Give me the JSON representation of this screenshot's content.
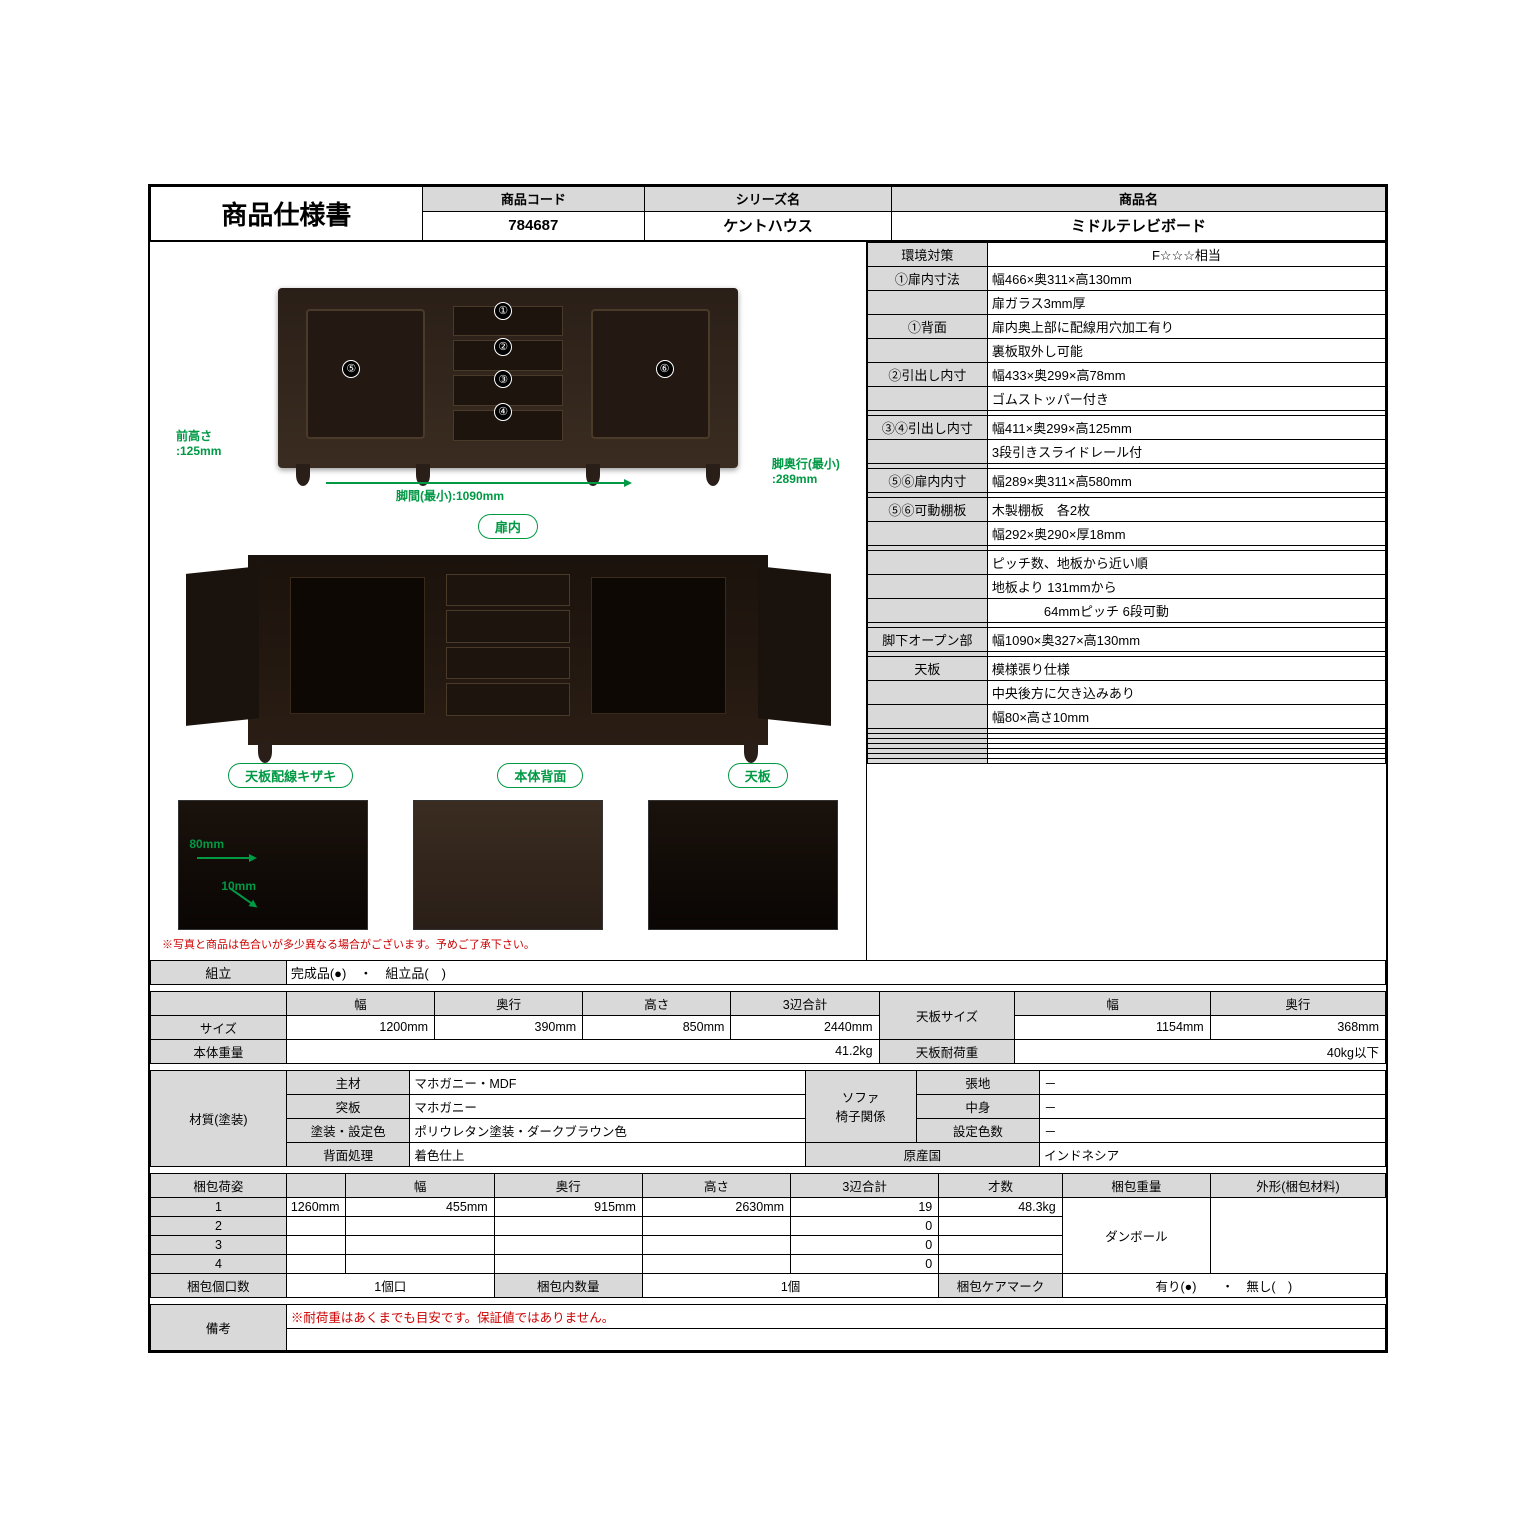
{
  "title": "商品仕様書",
  "header": {
    "code_label": "商品コード",
    "code": "784687",
    "series_label": "シリーズ名",
    "series": "ケントハウス",
    "name_label": "商品名",
    "name": "ミドルテレビボード"
  },
  "specs": [
    {
      "k": "環境対策",
      "v": "F☆☆☆相当"
    },
    {
      "k": "①扉内寸法",
      "v": "幅466×奥311×高130mm"
    },
    {
      "k": "",
      "v": "扉ガラス3mm厚"
    },
    {
      "k": "①背面",
      "v": "扉内奥上部に配線用穴加工有り"
    },
    {
      "k": "",
      "v": "裏板取外し可能"
    },
    {
      "k": "②引出し内寸",
      "v": "幅433×奥299×高78mm"
    },
    {
      "k": "",
      "v": "ゴムストッパー付き"
    },
    {
      "k": "",
      "v": ""
    },
    {
      "k": "③④引出し内寸",
      "v": "幅411×奥299×高125mm"
    },
    {
      "k": "",
      "v": "3段引きスライドレール付"
    },
    {
      "k": "",
      "v": ""
    },
    {
      "k": "⑤⑥扉内内寸",
      "v": "幅289×奥311×高580mm"
    },
    {
      "k": "",
      "v": ""
    },
    {
      "k": "⑤⑥可動棚板",
      "v": "木製棚板　各2枚"
    },
    {
      "k": "",
      "v": "幅292×奥290×厚18mm"
    },
    {
      "k": "",
      "v": ""
    },
    {
      "k": "",
      "v": "ピッチ数、地板から近い順"
    },
    {
      "k": "",
      "v": "地板より 131mmから"
    },
    {
      "k": "",
      "v": "　　　　64mmピッチ  6段可動"
    },
    {
      "k": "",
      "v": ""
    },
    {
      "k": "脚下オープン部",
      "v": "幅1090×奥327×高130mm"
    },
    {
      "k": "",
      "v": ""
    },
    {
      "k": "天板",
      "v": "模様張り仕様"
    },
    {
      "k": "",
      "v": "中央後方に欠き込みあり"
    },
    {
      "k": "",
      "v": "幅80×高さ10mm"
    },
    {
      "k": "",
      "v": ""
    },
    {
      "k": "",
      "v": ""
    },
    {
      "k": "",
      "v": ""
    },
    {
      "k": "",
      "v": ""
    },
    {
      "k": "",
      "v": ""
    },
    {
      "k": "",
      "v": ""
    },
    {
      "k": "",
      "v": ""
    }
  ],
  "dims": {
    "front_h": "前高さ\n:125mm",
    "leg_span": "脚間(最小):1090mm",
    "leg_depth": "脚奥行(最小)\n:289mm",
    "door_in": "扉内",
    "thumb1": "天板配線キザキ",
    "thumb2": "本体背面",
    "thumb3": "天板",
    "t1a": "80mm",
    "t1b": "10mm"
  },
  "photo_note": "※写真と商品は色合いが多少異なる場合がございます。予めご了承下さい。",
  "assembly": {
    "label": "組立",
    "val": "完成品(●)　・　組立品(　)"
  },
  "size": {
    "row_label": "サイズ",
    "w_label": "幅",
    "d_label": "奥行",
    "h_label": "高さ",
    "sum_label": "3辺合計",
    "w": "1200mm",
    "d": "390mm",
    "h": "850mm",
    "sum": "2440mm",
    "top_label": "天板サイズ",
    "top_w": "1154mm",
    "top_d": "368mm",
    "weight_label": "本体重量",
    "weight": "41.2kg",
    "cap_label": "天板耐荷重",
    "cap": "40kg以下"
  },
  "material": {
    "label": "材質(塗装)",
    "main_l": "主材",
    "main": "マホガニー・MDF",
    "ven_l": "突板",
    "ven": "マホガニー",
    "paint_l": "塗装・設定色",
    "paint": "ポリウレタン塗装・ダークブラウン色",
    "back_l": "背面処理",
    "back": "着色仕上",
    "sofa_label": "ソファ\n椅子関係",
    "s1_l": "張地",
    "s1": "－",
    "s2_l": "中身",
    "s2": "－",
    "s3_l": "設定色数",
    "s3": "－",
    "origin_l": "原産国",
    "origin": "インドネシア"
  },
  "pack": {
    "label": "梱包荷姿",
    "w_l": "幅",
    "d_l": "奥行",
    "h_l": "高さ",
    "sum_l": "3辺合計",
    "sai_l": "才数",
    "wt_l": "梱包重量",
    "shape_l": "外形(梱包材料)",
    "rows": [
      {
        "n": "1",
        "w": "1260mm",
        "d": "455mm",
        "h": "915mm",
        "sum": "2630mm",
        "sai": "19",
        "wt": "48.3kg"
      },
      {
        "n": "2",
        "w": "",
        "d": "",
        "h": "",
        "sum": "",
        "sai": "0",
        "wt": ""
      },
      {
        "n": "3",
        "w": "",
        "d": "",
        "h": "",
        "sum": "",
        "sai": "0",
        "wt": ""
      },
      {
        "n": "4",
        "w": "",
        "d": "",
        "h": "",
        "sum": "",
        "sai": "0",
        "wt": ""
      }
    ],
    "shape": "ダンボール",
    "count_l": "梱包個口数",
    "count": "1個口",
    "inner_l": "梱包内数量",
    "inner": "1個",
    "care_l": "梱包ケアマーク",
    "care": "有り(●)　　・　無し(　)"
  },
  "remarks": {
    "label": "備考",
    "note": "※耐荷重はあくまでも目安です。保証値ではありません。"
  }
}
